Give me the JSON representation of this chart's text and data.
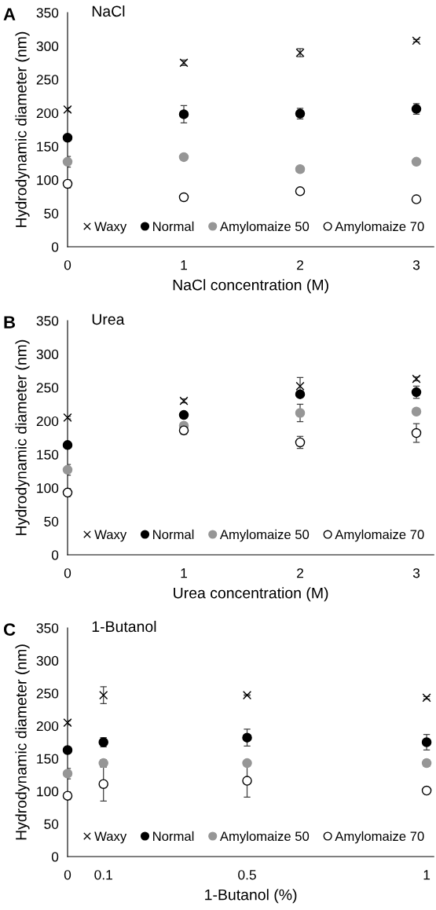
{
  "chart_data": [
    {
      "type": "scatter",
      "title": "NaCl",
      "xlabel": "NaCl concentration (M)",
      "ylabel": "Hydrodynamic diameter (nm)",
      "annotations": [
        "A"
      ],
      "x": [
        0,
        1,
        2,
        3
      ],
      "xlim": [
        0,
        3.15
      ],
      "xticks": [
        0,
        1,
        2,
        3
      ],
      "ylim": [
        0,
        350
      ],
      "yticks": [
        0,
        50,
        100,
        150,
        200,
        250,
        300,
        350
      ],
      "grid": false,
      "legend": "bottom",
      "series": [
        {
          "name": "Waxy",
          "color": "#000000",
          "marker": "cross",
          "values": [
            205,
            275,
            290,
            308
          ],
          "errors": [
            3,
            4,
            6,
            2
          ]
        },
        {
          "name": "Normal",
          "color": "#000000",
          "marker": "circle",
          "values": [
            163,
            198,
            199,
            206
          ],
          "errors": [
            1,
            13,
            8,
            8
          ]
        },
        {
          "name": "Amylomaize 50",
          "color": "#969696",
          "marker": "circle",
          "values": [
            127,
            134,
            116,
            127
          ],
          "errors": [
            8,
            2,
            2,
            1
          ]
        },
        {
          "name": "Amylomaize 70",
          "color": "#ffffff",
          "marker": "circle",
          "values": [
            94,
            74,
            83,
            71
          ],
          "errors": [
            6,
            4,
            1,
            1
          ]
        }
      ]
    },
    {
      "type": "scatter",
      "title": "Urea",
      "xlabel": "Urea concentration (M)",
      "ylabel": "Hydrodynamic diameter (nm)",
      "annotations": [
        "B"
      ],
      "x": [
        0,
        1,
        2,
        3
      ],
      "xlim": [
        0,
        3.15
      ],
      "xticks": [
        0,
        1,
        2,
        3
      ],
      "ylim": [
        0,
        350
      ],
      "yticks": [
        0,
        50,
        100,
        150,
        200,
        250,
        300,
        350
      ],
      "grid": false,
      "legend": "bottom",
      "series": [
        {
          "name": "Waxy",
          "color": "#000000",
          "marker": "cross",
          "values": [
            205,
            230,
            252,
            263
          ],
          "errors": [
            2,
            3,
            13,
            3
          ]
        },
        {
          "name": "Normal",
          "color": "#000000",
          "marker": "circle",
          "values": [
            164,
            209,
            240,
            243
          ],
          "errors": [
            1,
            1,
            3,
            9
          ]
        },
        {
          "name": "Amylomaize 50",
          "color": "#969696",
          "marker": "circle",
          "values": [
            127,
            193,
            212,
            214
          ],
          "errors": [
            8,
            2,
            13,
            4
          ]
        },
        {
          "name": "Amylomaize 70",
          "color": "#ffffff",
          "marker": "circle",
          "values": [
            93,
            186,
            168,
            182
          ],
          "errors": [
            6,
            6,
            9,
            14
          ]
        }
      ]
    },
    {
      "type": "scatter",
      "title": "1-Butanol",
      "xlabel": "1-Butanol (%)",
      "ylabel": "Hydrodynamic diameter (nm)",
      "annotations": [
        "C"
      ],
      "x": [
        0,
        0.1,
        0.5,
        1
      ],
      "xlim": [
        0,
        1.02
      ],
      "xticks": [
        0,
        0.1,
        0.5,
        1
      ],
      "ylim": [
        0,
        350
      ],
      "yticks": [
        0,
        50,
        100,
        150,
        200,
        250,
        300,
        350
      ],
      "grid": false,
      "legend": "bottom",
      "series": [
        {
          "name": "Waxy",
          "color": "#000000",
          "marker": "cross",
          "values": [
            205,
            247,
            247,
            243
          ],
          "errors": [
            3,
            13,
            1,
            2
          ]
        },
        {
          "name": "Normal",
          "color": "#000000",
          "marker": "circle",
          "values": [
            163,
            175,
            182,
            175
          ],
          "errors": [
            1,
            7,
            13,
            12
          ]
        },
        {
          "name": "Amylomaize 50",
          "color": "#969696",
          "marker": "circle",
          "values": [
            127,
            143,
            143,
            143
          ],
          "errors": [
            8,
            5,
            3,
            5
          ]
        },
        {
          "name": "Amylomaize 70",
          "color": "#ffffff",
          "marker": "circle",
          "values": [
            93,
            111,
            116,
            101
          ],
          "errors": [
            6,
            26,
            25,
            1
          ]
        }
      ]
    }
  ]
}
